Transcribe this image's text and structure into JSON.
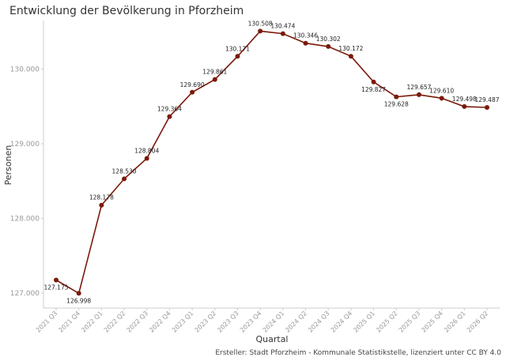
{
  "chart_data": {
    "type": "line",
    "title": "Entwicklung der Bevölkerung in Pforzheim",
    "xlabel": "Quartal",
    "ylabel": "Personen",
    "caption": "Ersteller: Stadt Pforzheim - Kommunale Statistikstelle, lizenziert unter CC BY 4.0",
    "ylim": [
      126800,
      130650
    ],
    "yticks": [
      127000,
      128000,
      129000,
      130000
    ],
    "ytick_labels": [
      "127.000",
      "128.000",
      "129.000",
      "130.000"
    ],
    "grid": false,
    "line_color": "#7a1a0a",
    "categories": [
      "2021 Q3",
      "2021 Q4",
      "2022 Q1",
      "2022 Q2",
      "2022 Q3",
      "2022 Q4",
      "2023 Q1",
      "2023 Q2",
      "2023 Q3",
      "2023 Q4",
      "2024 Q1",
      "2024 Q2",
      "2024 Q3",
      "2024 Q4",
      "2025 Q1",
      "2025 Q2",
      "2025 Q3",
      "2025 Q4",
      "2026 Q1",
      "2026 Q2"
    ],
    "values": [
      127175,
      126998,
      128178,
      128530,
      128804,
      129364,
      129690,
      129861,
      130171,
      130508,
      130474,
      130346,
      130302,
      130172,
      129827,
      129628,
      129657,
      129610,
      129498,
      129487
    ],
    "data_labels": [
      "127.175",
      "126.998",
      "128.178",
      "128.530",
      "128.804",
      "129.364",
      "129.690",
      "129.861",
      "130.171",
      "130.508",
      "130.474",
      "130.346",
      "130.302",
      "130.172",
      "129.827",
      "129.628",
      "129.657",
      "129.610",
      "129.498",
      "129.487"
    ],
    "label_positions": [
      "below",
      "below",
      "above",
      "above",
      "above",
      "above",
      "above",
      "above",
      "above",
      "above",
      "above",
      "above",
      "above",
      "above",
      "below",
      "below",
      "above",
      "above",
      "above",
      "above"
    ]
  }
}
